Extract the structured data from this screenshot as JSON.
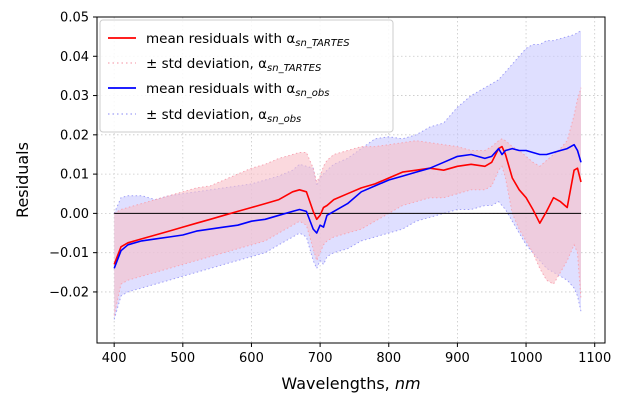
{
  "chart_data": {
    "type": "line",
    "xlabel": "Wavelengths, ",
    "xlabel_unit": "nm",
    "ylabel": "Residuals",
    "xlim": [
      375,
      1115
    ],
    "ylim": [
      -0.033,
      0.05
    ],
    "xticks": [
      400,
      500,
      600,
      700,
      800,
      900,
      1000,
      1100
    ],
    "yticks": [
      -0.02,
      -0.01,
      0.0,
      0.01,
      0.02,
      0.03,
      0.04,
      0.05
    ],
    "ytick_labels": [
      "−0.02",
      "−0.01",
      "0.00",
      "0.01",
      "0.02",
      "0.03",
      "0.04",
      "0.05"
    ],
    "grid": true,
    "legend_position": "top-left",
    "reference_line": 0,
    "colors": {
      "tartes": "#ff0000",
      "obs": "#0000ff",
      "tartes_fill": "#f8bfc8",
      "obs_fill": "#c9c9ff"
    },
    "legend": [
      {
        "prefix": "mean residuals with α",
        "sub": "sn_TARTES"
      },
      {
        "prefix": "± std deviation, α",
        "sub": "sn_TARTES"
      },
      {
        "prefix": "mean residuals with α",
        "sub": "sn_obs"
      },
      {
        "prefix": "± std deviation, α",
        "sub": "sn_obs"
      }
    ],
    "x": [
      400,
      410,
      420,
      440,
      460,
      480,
      500,
      520,
      540,
      560,
      580,
      600,
      620,
      640,
      660,
      670,
      680,
      690,
      695,
      700,
      705,
      710,
      720,
      740,
      760,
      780,
      800,
      820,
      840,
      860,
      880,
      900,
      920,
      940,
      950,
      960,
      965,
      970,
      980,
      990,
      1000,
      1010,
      1020,
      1030,
      1040,
      1050,
      1060,
      1070,
      1075,
      1080
    ],
    "series": [
      {
        "name": "mean residuals with α sn_TARTES",
        "mean": [
          -0.013,
          -0.0085,
          -0.0075,
          -0.0065,
          -0.0055,
          -0.0045,
          -0.0035,
          -0.0025,
          -0.0015,
          -0.0005,
          0.0005,
          0.0015,
          0.0025,
          0.0035,
          0.0055,
          0.006,
          0.0055,
          0.0005,
          -0.0015,
          -0.0005,
          0.0015,
          0.002,
          0.0035,
          0.005,
          0.0065,
          0.0075,
          0.009,
          0.0105,
          0.011,
          0.0115,
          0.011,
          0.012,
          0.0125,
          0.012,
          0.013,
          0.0165,
          0.017,
          0.015,
          0.009,
          0.006,
          0.004,
          0.001,
          -0.0025,
          0.0005,
          0.004,
          0.003,
          0.0015,
          0.011,
          0.0115,
          0.008
        ],
        "upper": [
          0.0,
          0.001,
          0.0015,
          0.0025,
          0.0035,
          0.0045,
          0.0055,
          0.0065,
          0.007,
          0.0085,
          0.01,
          0.0115,
          0.0125,
          0.014,
          0.015,
          0.0155,
          0.0155,
          0.0115,
          0.008,
          0.0095,
          0.012,
          0.0135,
          0.015,
          0.016,
          0.017,
          0.017,
          0.0175,
          0.018,
          0.0185,
          0.018,
          0.0175,
          0.017,
          0.016,
          0.016,
          0.017,
          0.0185,
          0.019,
          0.0185,
          0.017,
          0.016,
          0.0145,
          0.013,
          0.012,
          0.0135,
          0.015,
          0.0165,
          0.0185,
          0.025,
          0.029,
          0.032
        ],
        "lower": [
          -0.026,
          -0.018,
          -0.017,
          -0.016,
          -0.015,
          -0.014,
          -0.013,
          -0.012,
          -0.011,
          -0.01,
          -0.009,
          -0.008,
          -0.007,
          -0.005,
          -0.003,
          -0.002,
          -0.003,
          -0.009,
          -0.012,
          -0.01,
          -0.008,
          -0.007,
          -0.006,
          -0.005,
          -0.004,
          -0.002,
          0.0,
          0.002,
          0.003,
          0.004,
          0.004,
          0.005,
          0.006,
          0.006,
          0.007,
          0.011,
          0.012,
          0.009,
          0.0,
          -0.004,
          -0.007,
          -0.01,
          -0.014,
          -0.017,
          -0.018,
          -0.015,
          -0.012,
          -0.008,
          -0.01,
          -0.022
        ]
      },
      {
        "name": "mean residuals with α sn_obs",
        "mean": [
          -0.014,
          -0.0095,
          -0.008,
          -0.007,
          -0.0065,
          -0.006,
          -0.0055,
          -0.0045,
          -0.004,
          -0.0035,
          -0.003,
          -0.002,
          -0.0015,
          -0.0005,
          0.0005,
          0.001,
          0.0005,
          -0.004,
          -0.005,
          -0.003,
          -0.0035,
          -0.0005,
          0.0005,
          0.0025,
          0.0055,
          0.007,
          0.0085,
          0.0095,
          0.0105,
          0.0115,
          0.013,
          0.0145,
          0.015,
          0.014,
          0.0145,
          0.0165,
          0.015,
          0.016,
          0.0165,
          0.016,
          0.016,
          0.0155,
          0.015,
          0.015,
          0.0155,
          0.016,
          0.0165,
          0.0175,
          0.016,
          0.013
        ],
        "upper": [
          0.0,
          0.004,
          0.0045,
          0.0045,
          0.0035,
          0.0045,
          0.005,
          0.0055,
          0.006,
          0.0065,
          0.007,
          0.0075,
          0.0085,
          0.0095,
          0.011,
          0.0125,
          0.012,
          0.0115,
          0.007,
          0.009,
          0.01,
          0.011,
          0.0125,
          0.014,
          0.0165,
          0.019,
          0.0195,
          0.019,
          0.02,
          0.022,
          0.023,
          0.027,
          0.03,
          0.032,
          0.033,
          0.034,
          0.035,
          0.036,
          0.038,
          0.04,
          0.042,
          0.043,
          0.043,
          0.044,
          0.044,
          0.0445,
          0.045,
          0.0455,
          0.046,
          0.0465
        ],
        "lower": [
          -0.027,
          -0.021,
          -0.02,
          -0.019,
          -0.018,
          -0.017,
          -0.016,
          -0.015,
          -0.014,
          -0.013,
          -0.012,
          -0.011,
          -0.01,
          -0.008,
          -0.006,
          -0.005,
          -0.006,
          -0.012,
          -0.014,
          -0.012,
          -0.013,
          -0.011,
          -0.01,
          -0.009,
          -0.007,
          -0.006,
          -0.005,
          -0.004,
          -0.002,
          -0.001,
          0.0,
          0.001,
          0.001,
          0.002,
          0.002,
          0.003,
          0.002,
          0.001,
          -0.002,
          -0.005,
          -0.008,
          -0.01,
          -0.012,
          -0.014,
          -0.015,
          -0.016,
          -0.017,
          -0.019,
          -0.021,
          -0.025
        ]
      }
    ]
  }
}
